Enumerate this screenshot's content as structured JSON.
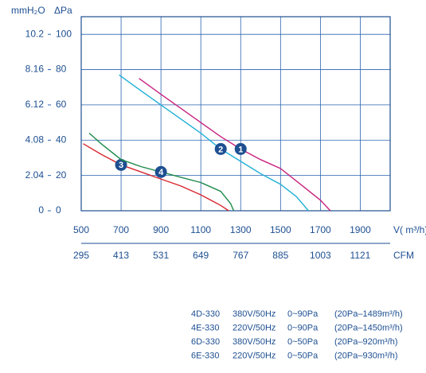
{
  "chart_data": {
    "type": "line",
    "ylabel": "ΔPa",
    "y2label": "mmH₂O",
    "xlabel": "V( m³/h)",
    "x2label": "CFM",
    "xlim": [
      500,
      2050
    ],
    "xticks": [
      500,
      700,
      900,
      1100,
      1300,
      1500,
      1700,
      1900
    ],
    "x2lim": [
      295,
      1209.5
    ],
    "x2ticks": [
      295,
      413,
      531,
      649,
      767,
      885,
      1003,
      1121
    ],
    "ylim": [
      0,
      110
    ],
    "yticks": [
      0,
      20,
      40,
      60,
      80,
      100
    ],
    "y2lim": [
      0,
      11.22
    ],
    "y2ticks": [
      0,
      2.04,
      4.08,
      6.12,
      8.16,
      10.2
    ],
    "grid": true,
    "series": [
      {
        "label": "1",
        "color": "#c8237f",
        "x": [
          790,
          900,
          1000,
          1100,
          1200,
          1300,
          1400,
          1500,
          1600,
          1700,
          1750
        ],
        "values": [
          75,
          66,
          58,
          50,
          42,
          35,
          29,
          24,
          15,
          6,
          0
        ]
      },
      {
        "label": "2",
        "color": "#1fb0d6",
        "x": [
          690,
          800,
          900,
          1000,
          1100,
          1200,
          1300,
          1400,
          1500,
          1580,
          1640
        ],
        "values": [
          77,
          68,
          60,
          52,
          44,
          35,
          28,
          21,
          15,
          8,
          0
        ]
      },
      {
        "label": "3",
        "color": "#d8262f",
        "x": [
          510,
          600,
          700,
          800,
          900,
          1000,
          1100,
          1200,
          1240
        ],
        "values": [
          38,
          32,
          26,
          22,
          18,
          14,
          9,
          3,
          0
        ]
      },
      {
        "label": "4",
        "color": "#1e8a4a",
        "x": [
          540,
          600,
          700,
          800,
          900,
          1000,
          1100,
          1200,
          1250,
          1265
        ],
        "values": [
          44,
          38,
          29,
          25,
          22,
          19,
          16,
          11,
          4,
          0
        ]
      }
    ],
    "table": [
      [
        "4D-330",
        "380V/50Hz",
        "0~90Pa",
        "(20Pa–1489m³/h)"
      ],
      [
        "4E-330",
        "220V/50Hz",
        "0~90Pa",
        "(20Pa–1450m³/h)"
      ],
      [
        "6D-330",
        "380V/50Hz",
        "0~50Pa",
        "(20Pa–920m³/h)"
      ],
      [
        "6E-330",
        "220V/50Hz",
        "0~50Pa",
        "(20Pa–930m³/h)"
      ]
    ]
  }
}
